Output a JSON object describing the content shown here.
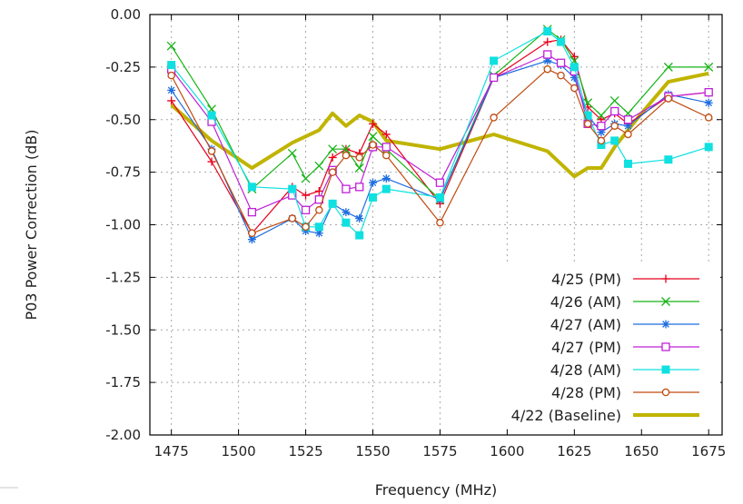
{
  "chart_data": {
    "type": "line",
    "title": "",
    "xlabel": "Frequency (MHz)",
    "ylabel": "P03 Power Correction (dB)",
    "xlim": [
      1467,
      1680
    ],
    "ylim": [
      -2.0,
      0.0
    ],
    "xticks": [
      1475,
      1500,
      1525,
      1550,
      1575,
      1600,
      1625,
      1650,
      1675
    ],
    "xtick_labels": [
      "1475",
      "1500",
      "1525",
      "1550",
      "1575",
      "1600",
      "1625",
      "1650",
      "1675"
    ],
    "yticks": [
      0.0,
      -0.25,
      -0.5,
      -0.75,
      -1.0,
      -1.25,
      -1.5,
      -1.75,
      -2.0
    ],
    "ytick_labels": [
      "0.00",
      "-0.25",
      "-0.50",
      "-0.75",
      "-1.00",
      "-1.25",
      "-1.50",
      "-1.75",
      "-2.00"
    ],
    "grid": true,
    "legend_position": "bottom-right",
    "series": [
      {
        "name": "4/25 (PM)",
        "color": "#e8001c",
        "marker": "plus",
        "x": [
          1475,
          1490,
          1505,
          1520,
          1525,
          1530,
          1535,
          1540,
          1545,
          1550,
          1555,
          1575,
          1595,
          1615,
          1620,
          1625,
          1630,
          1635,
          1640,
          1645,
          1660,
          1675
        ],
        "y": [
          -0.41,
          -0.7,
          -1.04,
          -0.82,
          -0.86,
          -0.84,
          -0.68,
          -0.64,
          -0.66,
          -0.52,
          -0.57,
          -0.9,
          -0.3,
          -0.13,
          -0.12,
          -0.2,
          -0.44,
          -0.5,
          -0.47,
          -0.52,
          -0.39,
          -0.37
        ]
      },
      {
        "name": "4/26 (AM)",
        "color": "#16b416",
        "marker": "x",
        "x": [
          1475,
          1490,
          1505,
          1520,
          1525,
          1530,
          1535,
          1540,
          1545,
          1550,
          1555,
          1575,
          1595,
          1615,
          1620,
          1625,
          1630,
          1635,
          1640,
          1645,
          1660,
          1675
        ],
        "y": [
          -0.15,
          -0.45,
          -0.83,
          -0.66,
          -0.78,
          -0.72,
          -0.64,
          -0.64,
          -0.73,
          -0.58,
          -0.64,
          -0.88,
          -0.29,
          -0.07,
          -0.12,
          -0.22,
          -0.42,
          -0.48,
          -0.41,
          -0.47,
          -0.25,
          -0.25
        ]
      },
      {
        "name": "4/27 (AM)",
        "color": "#1e6ee0",
        "marker": "star",
        "x": [
          1475,
          1490,
          1505,
          1520,
          1525,
          1530,
          1535,
          1540,
          1545,
          1550,
          1555,
          1575,
          1595,
          1615,
          1620,
          1625,
          1630,
          1635,
          1640,
          1645,
          1660,
          1675
        ],
        "y": [
          -0.36,
          -0.64,
          -1.07,
          -0.97,
          -1.03,
          -1.04,
          -0.9,
          -0.94,
          -0.97,
          -0.8,
          -0.78,
          -0.88,
          -0.3,
          -0.22,
          -0.24,
          -0.3,
          -0.48,
          -0.56,
          -0.52,
          -0.53,
          -0.38,
          -0.42
        ]
      },
      {
        "name": "4/27 (PM)",
        "color": "#c020d8",
        "marker": "square-open",
        "x": [
          1475,
          1490,
          1505,
          1520,
          1525,
          1530,
          1535,
          1540,
          1545,
          1550,
          1555,
          1575,
          1595,
          1615,
          1620,
          1625,
          1630,
          1635,
          1640,
          1645,
          1660,
          1675
        ],
        "y": [
          -0.26,
          -0.51,
          -0.94,
          -0.86,
          -0.93,
          -0.88,
          -0.74,
          -0.83,
          -0.82,
          -0.63,
          -0.63,
          -0.8,
          -0.3,
          -0.19,
          -0.23,
          -0.27,
          -0.52,
          -0.53,
          -0.46,
          -0.5,
          -0.39,
          -0.37
        ]
      },
      {
        "name": "4/28 (AM)",
        "color": "#10e0e0",
        "marker": "square-filled",
        "x": [
          1475,
          1490,
          1505,
          1520,
          1525,
          1530,
          1535,
          1540,
          1545,
          1550,
          1555,
          1575,
          1595,
          1615,
          1620,
          1625,
          1630,
          1635,
          1640,
          1645,
          1660,
          1675
        ],
        "y": [
          -0.24,
          -0.48,
          -0.82,
          -0.83,
          -1.01,
          -1.01,
          -0.9,
          -0.99,
          -1.05,
          -0.87,
          -0.83,
          -0.87,
          -0.22,
          -0.08,
          -0.13,
          -0.25,
          -0.48,
          -0.62,
          -0.6,
          -0.71,
          -0.69,
          -0.63
        ]
      },
      {
        "name": "4/28 (PM)",
        "color": "#c04a10",
        "marker": "circle-open",
        "x": [
          1475,
          1490,
          1505,
          1520,
          1525,
          1530,
          1535,
          1540,
          1545,
          1550,
          1555,
          1575,
          1595,
          1615,
          1620,
          1625,
          1630,
          1635,
          1640,
          1645,
          1660,
          1675
        ],
        "y": [
          -0.29,
          -0.65,
          -1.04,
          -0.97,
          -1.01,
          -0.93,
          -0.75,
          -0.67,
          -0.68,
          -0.62,
          -0.67,
          -0.99,
          -0.49,
          -0.26,
          -0.29,
          -0.35,
          -0.52,
          -0.6,
          -0.53,
          -0.57,
          -0.4,
          -0.49
        ]
      },
      {
        "name": "4/22 (Baseline)",
        "color": "#c0b400",
        "marker": "none",
        "x": [
          1475,
          1490,
          1505,
          1520,
          1530,
          1535,
          1540,
          1545,
          1550,
          1555,
          1575,
          1595,
          1615,
          1620,
          1625,
          1630,
          1635,
          1640,
          1650,
          1660,
          1675
        ],
        "y": [
          -0.43,
          -0.6,
          -0.73,
          -0.61,
          -0.55,
          -0.47,
          -0.53,
          -0.48,
          -0.51,
          -0.6,
          -0.64,
          -0.57,
          -0.65,
          -0.71,
          -0.77,
          -0.73,
          -0.73,
          -0.63,
          -0.47,
          -0.32,
          -0.28
        ]
      }
    ]
  }
}
